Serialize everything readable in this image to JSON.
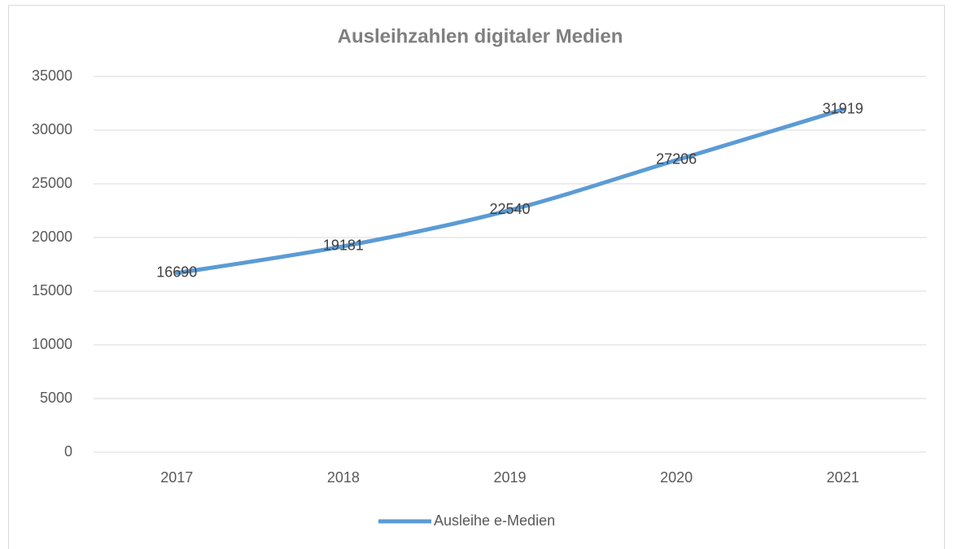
{
  "chart_data": {
    "type": "line",
    "title": "Ausleihzahlen digitaler Medien",
    "categories": [
      "2017",
      "2018",
      "2019",
      "2020",
      "2021"
    ],
    "series": [
      {
        "name": "Ausleihe e-Medien",
        "color": "#5b9bd5",
        "values": [
          16690,
          19181,
          22540,
          27206,
          31919
        ]
      }
    ],
    "ylim": [
      0,
      35000
    ],
    "yticks": [
      0,
      5000,
      10000,
      15000,
      20000,
      25000,
      30000,
      35000
    ],
    "grid": true,
    "smooth": true,
    "legend": "bottom"
  }
}
